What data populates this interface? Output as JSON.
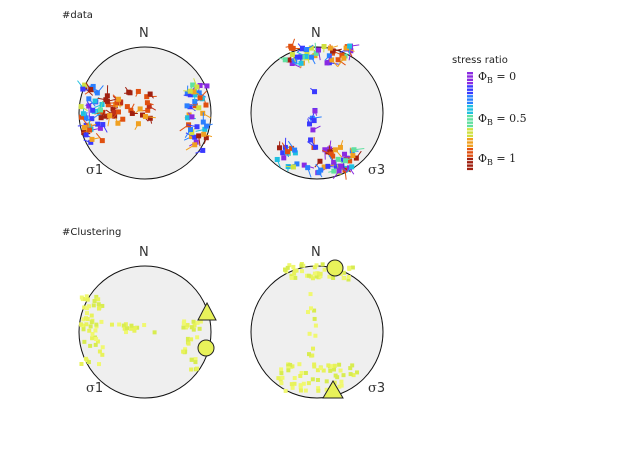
{
  "sections": {
    "data_label": "#data",
    "clustering_label": "#Clustering"
  },
  "stereonets": {
    "north": "N",
    "sigma1": {
      "symbol": "σ",
      "num": "1"
    },
    "sigma3": {
      "symbol": "σ",
      "num": "3"
    }
  },
  "legend": {
    "title": "stress ratio",
    "ticks": [
      {
        "phi": "Φ",
        "sub": "B",
        "rest": " = 0"
      },
      {
        "phi": "Φ",
        "sub": "B",
        "rest": " = 0.5"
      },
      {
        "phi": "Φ",
        "sub": "B",
        "rest": " = 1"
      }
    ],
    "colors": [
      "#8a2be2",
      "#3a3aff",
      "#2a7fff",
      "#20c0e0",
      "#60e0a0",
      "#d0e040",
      "#f0a020",
      "#e05010",
      "#a02010"
    ]
  },
  "cluster_color": "#e8f25a"
}
